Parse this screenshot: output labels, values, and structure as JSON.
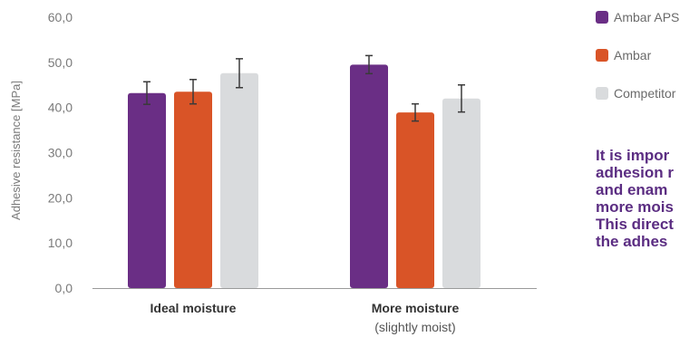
{
  "chart_data": {
    "type": "bar",
    "ylabel": "Adhesive resistance [MPa]",
    "ylim": [
      0,
      60
    ],
    "yticks": [
      "0,0",
      "10,0",
      "20,0",
      "30,0",
      "40,0",
      "50,0",
      "60,0"
    ],
    "categories": [
      {
        "label": "Ideal moisture",
        "sublabel": ""
      },
      {
        "label": "More moisture",
        "sublabel": "(slightly moist)"
      }
    ],
    "series": [
      {
        "name": "Ambar APS",
        "color": "#6a2e85",
        "values": [
          43.2,
          49.5
        ],
        "errors": [
          2.5,
          2.0
        ]
      },
      {
        "name": "Ambar",
        "color": "#d95427",
        "values": [
          43.5,
          38.9
        ],
        "errors": [
          2.7,
          1.9
        ]
      },
      {
        "name": "Competitor",
        "color": "#d9dbdd",
        "values": [
          47.6,
          42.0
        ],
        "errors": [
          3.2,
          3.0
        ]
      }
    ],
    "grid": false,
    "legend_position": "top-right"
  },
  "side_text": {
    "lines": [
      "It is impor",
      "adhesion r",
      "and enam",
      "more mois",
      "This direct",
      "the adhes"
    ]
  }
}
